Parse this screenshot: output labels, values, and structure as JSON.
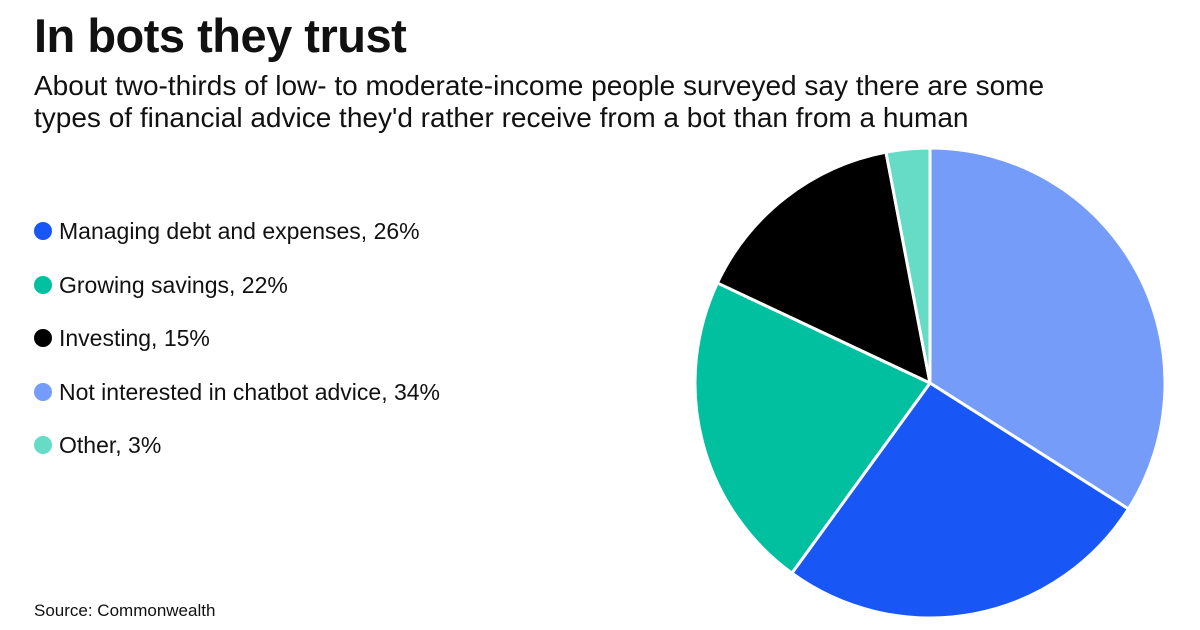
{
  "title": "In bots they trust",
  "subtitle": "About two-thirds of low- to moderate-income people surveyed say there are some\ntypes of financial advice they'd rather receive from a bot than from a human",
  "source": "Source: Commonwealth",
  "legend": [
    {
      "label": "Managing debt and expenses, 26%",
      "color": "#1857f5"
    },
    {
      "label": "Growing savings, 22%",
      "color": "#00c0a0"
    },
    {
      "label": "Investing, 15%",
      "color": "#000000"
    },
    {
      "label": "Not interested in chatbot advice, 34%",
      "color": "#749cf8"
    },
    {
      "label": "Other, 3%",
      "color": "#66dcc6"
    }
  ],
  "chart_data": {
    "type": "pie",
    "slices": [
      {
        "name": "Not interested in chatbot advice",
        "value": 34,
        "color": "#749cf8"
      },
      {
        "name": "Managing debt and expenses",
        "value": 26,
        "color": "#1857f5"
      },
      {
        "name": "Growing savings",
        "value": 22,
        "color": "#00c0a0"
      },
      {
        "name": "Investing",
        "value": 15,
        "color": "#000000"
      },
      {
        "name": "Other",
        "value": 3,
        "color": "#66dcc6"
      }
    ],
    "start_angle_deg": 0,
    "direction": "clockwise",
    "legend_position": "left"
  }
}
